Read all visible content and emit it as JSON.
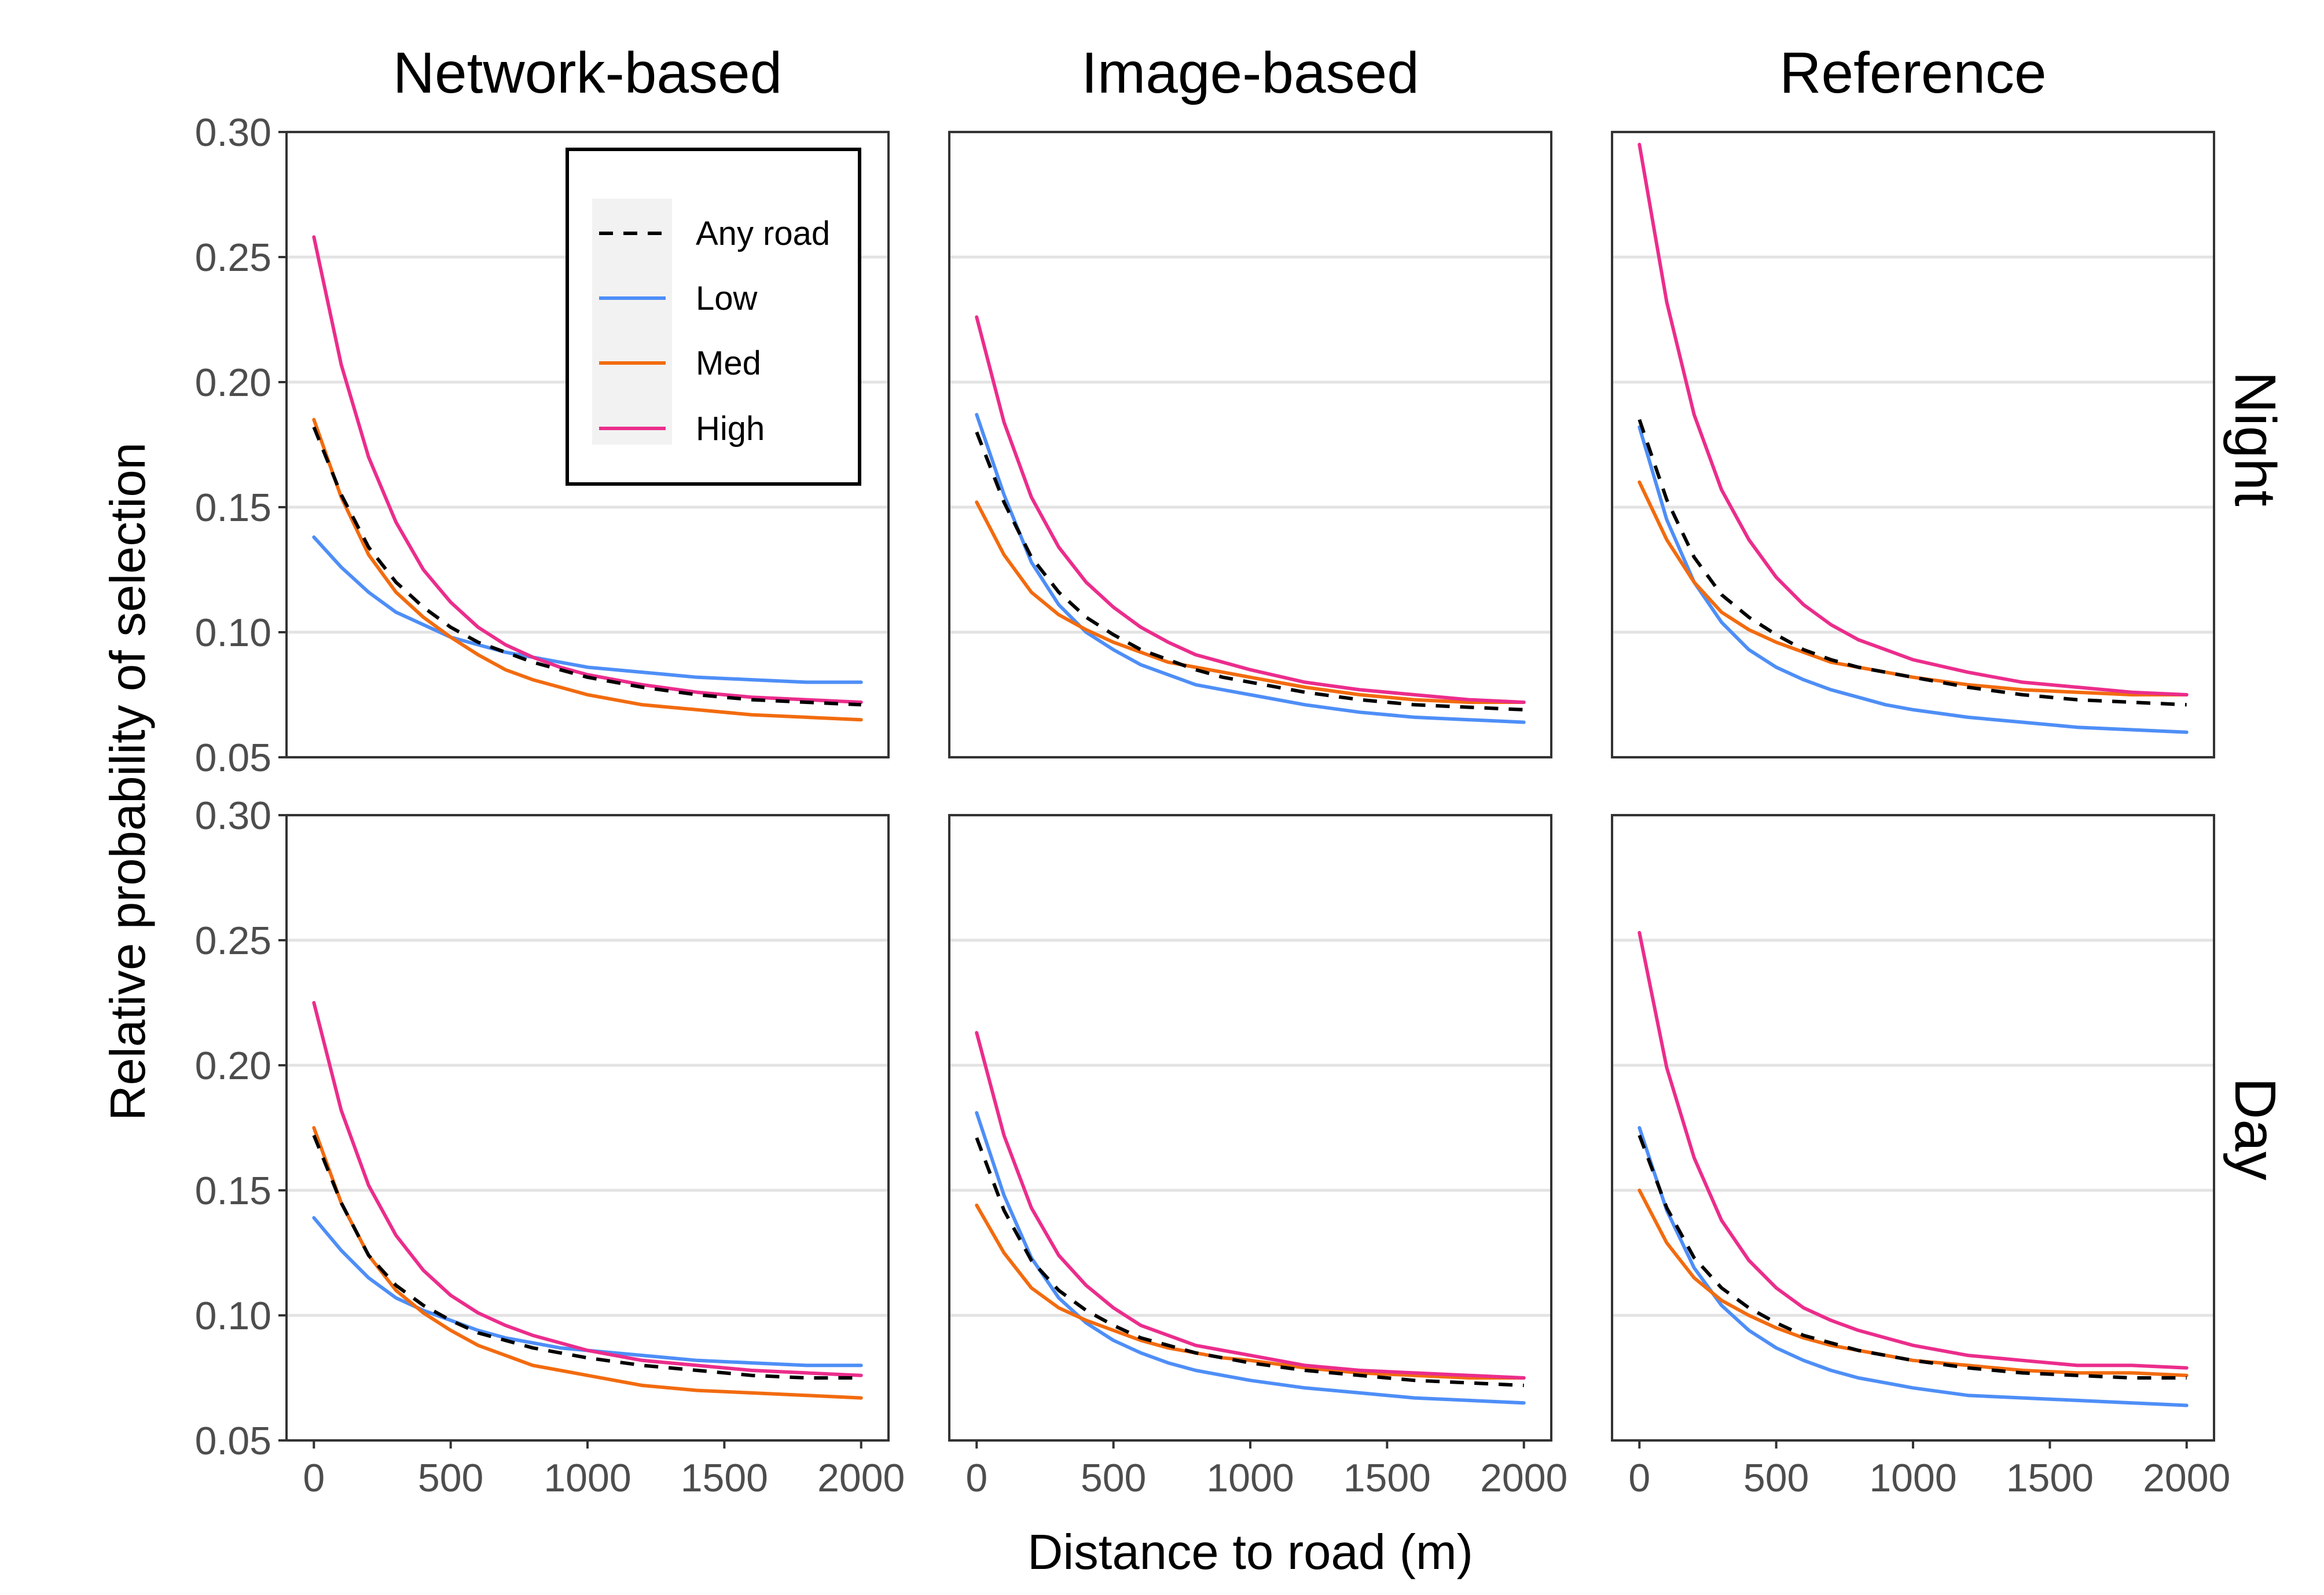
{
  "chart_data": {
    "type": "line",
    "layout": "facet-grid",
    "column_facets": [
      "Network-based",
      "Image-based",
      "Reference"
    ],
    "row_facets": [
      "Night",
      "Day"
    ],
    "xlabel": "Distance to road (m)",
    "ylabel": "Relative probability of selection",
    "xlim": [
      -100,
      2100
    ],
    "ylim": [
      0.05,
      0.3
    ],
    "x_ticks": [
      0,
      500,
      1000,
      1500,
      2000
    ],
    "y_ticks": [
      0.05,
      0.1,
      0.15,
      0.2,
      0.25,
      0.3
    ],
    "y_tick_labels": [
      "0.05",
      "0.10",
      "0.15",
      "0.20",
      "0.25",
      "0.30"
    ],
    "grid": "horizontal major",
    "x": [
      0,
      100,
      200,
      300,
      400,
      500,
      600,
      700,
      800,
      900,
      1000,
      1200,
      1400,
      1600,
      1800,
      2000
    ],
    "legend": {
      "placement": "inside top-right of Network-based / Night panel",
      "entries": [
        {
          "name": "Any road",
          "color": "#000000",
          "dash": "dashed"
        },
        {
          "name": "Low",
          "color": "#4e8ef7",
          "dash": "solid"
        },
        {
          "name": "Med",
          "color": "#f26b0f",
          "dash": "solid"
        },
        {
          "name": "High",
          "color": "#eb2d8c",
          "dash": "solid"
        }
      ]
    },
    "panels": [
      {
        "column": "Network-based",
        "row": "Night",
        "series": [
          {
            "name": "Any road",
            "values": [
              0.182,
              0.155,
              0.134,
              0.12,
              0.11,
              0.102,
              0.096,
              0.092,
              0.088,
              0.085,
              0.082,
              0.078,
              0.075,
              0.073,
              0.072,
              0.071
            ]
          },
          {
            "name": "Low",
            "values": [
              0.138,
              0.126,
              0.116,
              0.108,
              0.103,
              0.098,
              0.095,
              0.092,
              0.09,
              0.088,
              0.086,
              0.084,
              0.082,
              0.081,
              0.08,
              0.08
            ]
          },
          {
            "name": "Med",
            "values": [
              0.185,
              0.154,
              0.131,
              0.116,
              0.106,
              0.098,
              0.091,
              0.085,
              0.081,
              0.078,
              0.075,
              0.071,
              0.069,
              0.067,
              0.066,
              0.065
            ]
          },
          {
            "name": "High",
            "values": [
              0.258,
              0.207,
              0.17,
              0.144,
              0.125,
              0.112,
              0.102,
              0.095,
              0.09,
              0.086,
              0.083,
              0.079,
              0.076,
              0.074,
              0.073,
              0.072
            ]
          }
        ]
      },
      {
        "column": "Image-based",
        "row": "Night",
        "series": [
          {
            "name": "Any road",
            "values": [
              0.18,
              0.152,
              0.13,
              0.116,
              0.106,
              0.099,
              0.093,
              0.089,
              0.085,
              0.082,
              0.08,
              0.076,
              0.073,
              0.071,
              0.07,
              0.069
            ]
          },
          {
            "name": "Low",
            "values": [
              0.187,
              0.155,
              0.128,
              0.111,
              0.1,
              0.093,
              0.087,
              0.083,
              0.079,
              0.077,
              0.075,
              0.071,
              0.068,
              0.066,
              0.065,
              0.064
            ]
          },
          {
            "name": "Med",
            "values": [
              0.152,
              0.131,
              0.116,
              0.107,
              0.101,
              0.096,
              0.092,
              0.088,
              0.086,
              0.084,
              0.082,
              0.078,
              0.075,
              0.073,
              0.072,
              0.072
            ]
          },
          {
            "name": "High",
            "values": [
              0.226,
              0.184,
              0.154,
              0.134,
              0.12,
              0.11,
              0.102,
              0.096,
              0.091,
              0.088,
              0.085,
              0.08,
              0.077,
              0.075,
              0.073,
              0.072
            ]
          }
        ]
      },
      {
        "column": "Reference",
        "row": "Night",
        "series": [
          {
            "name": "Any road",
            "values": [
              0.185,
              0.153,
              0.13,
              0.115,
              0.106,
              0.099,
              0.093,
              0.089,
              0.086,
              0.084,
              0.082,
              0.078,
              0.075,
              0.073,
              0.072,
              0.071
            ]
          },
          {
            "name": "Low",
            "values": [
              0.182,
              0.145,
              0.12,
              0.104,
              0.093,
              0.086,
              0.081,
              0.077,
              0.074,
              0.071,
              0.069,
              0.066,
              0.064,
              0.062,
              0.061,
              0.06
            ]
          },
          {
            "name": "Med",
            "values": [
              0.16,
              0.137,
              0.12,
              0.108,
              0.101,
              0.096,
              0.092,
              0.088,
              0.086,
              0.084,
              0.082,
              0.079,
              0.077,
              0.076,
              0.075,
              0.075
            ]
          },
          {
            "name": "High",
            "values": [
              0.295,
              0.232,
              0.187,
              0.157,
              0.137,
              0.122,
              0.111,
              0.103,
              0.097,
              0.093,
              0.089,
              0.084,
              0.08,
              0.078,
              0.076,
              0.075
            ]
          }
        ]
      },
      {
        "column": "Network-based",
        "row": "Day",
        "series": [
          {
            "name": "Any road",
            "values": [
              0.172,
              0.145,
              0.124,
              0.112,
              0.104,
              0.098,
              0.093,
              0.09,
              0.087,
              0.085,
              0.083,
              0.08,
              0.078,
              0.076,
              0.075,
              0.075
            ]
          },
          {
            "name": "Low",
            "values": [
              0.139,
              0.126,
              0.115,
              0.107,
              0.102,
              0.098,
              0.094,
              0.091,
              0.089,
              0.087,
              0.086,
              0.084,
              0.082,
              0.081,
              0.08,
              0.08
            ]
          },
          {
            "name": "Med",
            "values": [
              0.175,
              0.145,
              0.124,
              0.11,
              0.101,
              0.094,
              0.088,
              0.084,
              0.08,
              0.078,
              0.076,
              0.072,
              0.07,
              0.069,
              0.068,
              0.067
            ]
          },
          {
            "name": "High",
            "values": [
              0.225,
              0.182,
              0.152,
              0.132,
              0.118,
              0.108,
              0.101,
              0.096,
              0.092,
              0.089,
              0.086,
              0.082,
              0.08,
              0.078,
              0.077,
              0.076
            ]
          }
        ]
      },
      {
        "column": "Image-based",
        "row": "Day",
        "series": [
          {
            "name": "Any road",
            "values": [
              0.171,
              0.142,
              0.122,
              0.11,
              0.102,
              0.096,
              0.091,
              0.088,
              0.085,
              0.083,
              0.081,
              0.078,
              0.076,
              0.074,
              0.073,
              0.072
            ]
          },
          {
            "name": "Low",
            "values": [
              0.181,
              0.148,
              0.123,
              0.107,
              0.097,
              0.09,
              0.085,
              0.081,
              0.078,
              0.076,
              0.074,
              0.071,
              0.069,
              0.067,
              0.066,
              0.065
            ]
          },
          {
            "name": "Med",
            "values": [
              0.144,
              0.125,
              0.111,
              0.103,
              0.098,
              0.094,
              0.09,
              0.087,
              0.085,
              0.083,
              0.082,
              0.079,
              0.077,
              0.076,
              0.075,
              0.075
            ]
          },
          {
            "name": "High",
            "values": [
              0.213,
              0.172,
              0.143,
              0.124,
              0.112,
              0.103,
              0.096,
              0.092,
              0.088,
              0.086,
              0.084,
              0.08,
              0.078,
              0.077,
              0.076,
              0.075
            ]
          }
        ]
      },
      {
        "column": "Reference",
        "row": "Day",
        "series": [
          {
            "name": "Any road",
            "values": [
              0.172,
              0.143,
              0.123,
              0.111,
              0.103,
              0.097,
              0.092,
              0.089,
              0.086,
              0.084,
              0.082,
              0.079,
              0.077,
              0.076,
              0.075,
              0.075
            ]
          },
          {
            "name": "Low",
            "values": [
              0.175,
              0.142,
              0.119,
              0.104,
              0.094,
              0.087,
              0.082,
              0.078,
              0.075,
              0.073,
              0.071,
              0.068,
              0.067,
              0.066,
              0.065,
              0.064
            ]
          },
          {
            "name": "Med",
            "values": [
              0.15,
              0.129,
              0.115,
              0.106,
              0.1,
              0.095,
              0.091,
              0.088,
              0.086,
              0.084,
              0.082,
              0.08,
              0.078,
              0.077,
              0.077,
              0.076
            ]
          },
          {
            "name": "High",
            "values": [
              0.253,
              0.199,
              0.163,
              0.138,
              0.122,
              0.111,
              0.103,
              0.098,
              0.094,
              0.091,
              0.088,
              0.084,
              0.082,
              0.08,
              0.08,
              0.079
            ]
          }
        ]
      }
    ]
  }
}
